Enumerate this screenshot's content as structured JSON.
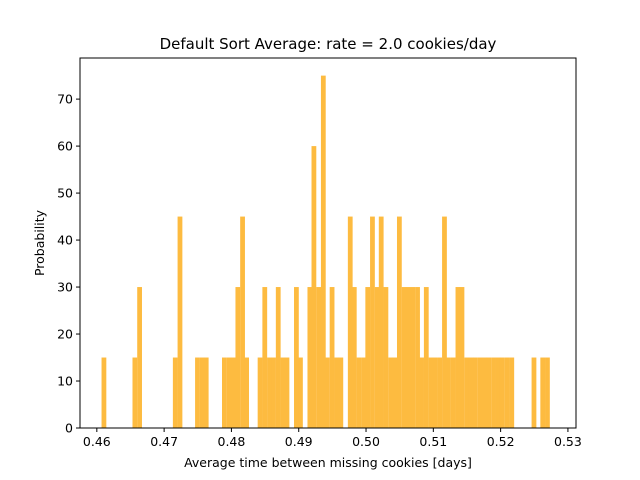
{
  "chart_data": {
    "type": "bar",
    "title": "Default Sort Average: rate = 2.0 cookies/day",
    "xlabel": "Average time between missing cookies [days]",
    "ylabel": "Probability",
    "xlim": [
      0.4575,
      0.5312
    ],
    "ylim": [
      0,
      78.75
    ],
    "xticks": [
      0.46,
      0.47,
      0.48,
      0.49,
      0.5,
      0.51,
      0.52,
      0.53
    ],
    "xtick_labels": [
      "0.46",
      "0.47",
      "0.48",
      "0.49",
      "0.50",
      "0.51",
      "0.52",
      "0.53"
    ],
    "yticks": [
      0,
      10,
      20,
      30,
      40,
      50,
      60,
      70
    ],
    "ytick_labels": [
      "0",
      "10",
      "20",
      "30",
      "40",
      "50",
      "60",
      "70"
    ],
    "bar_color": "#fdbb40",
    "bin_width": 0.000666,
    "bin_starts": [
      0.4607,
      0.4653,
      0.466,
      0.4713,
      0.472,
      0.4746,
      0.4753,
      0.4759,
      0.4786,
      0.4793,
      0.4799,
      0.4806,
      0.4813,
      0.4819,
      0.4839,
      0.4846,
      0.4853,
      0.4859,
      0.4866,
      0.4873,
      0.4879,
      0.4893,
      0.4899,
      0.4913,
      0.4919,
      0.4926,
      0.4933,
      0.4939,
      0.4946,
      0.4953,
      0.4959,
      0.4973,
      0.4979,
      0.4986,
      0.4993,
      0.4999,
      0.5006,
      0.5013,
      0.5019,
      0.5026,
      0.5033,
      0.5039,
      0.5046,
      0.5053,
      0.5059,
      0.5066,
      0.5073,
      0.5079,
      0.5086,
      0.5093,
      0.5099,
      0.5106,
      0.5113,
      0.5119,
      0.5126,
      0.5133,
      0.5139,
      0.5146,
      0.5153,
      0.5159,
      0.5166,
      0.5173,
      0.5179,
      0.5186,
      0.5193,
      0.5199,
      0.5206,
      0.5213,
      0.5246,
      0.5259,
      0.5266
    ],
    "values": [
      15,
      15,
      30,
      15,
      45,
      15,
      15,
      15,
      15,
      15,
      15,
      30,
      45,
      15,
      15,
      30,
      15,
      15,
      30,
      15,
      15,
      30,
      15,
      30,
      60,
      30,
      75,
      15,
      30,
      15,
      15,
      45,
      30,
      15,
      15,
      30,
      45,
      30,
      45,
      30,
      15,
      15,
      45,
      30,
      30,
      30,
      30,
      15,
      30,
      15,
      15,
      15,
      45,
      15,
      15,
      30,
      30,
      15,
      15,
      15,
      15,
      15,
      15,
      15,
      15,
      15,
      15,
      15,
      15,
      15,
      15
    ]
  }
}
